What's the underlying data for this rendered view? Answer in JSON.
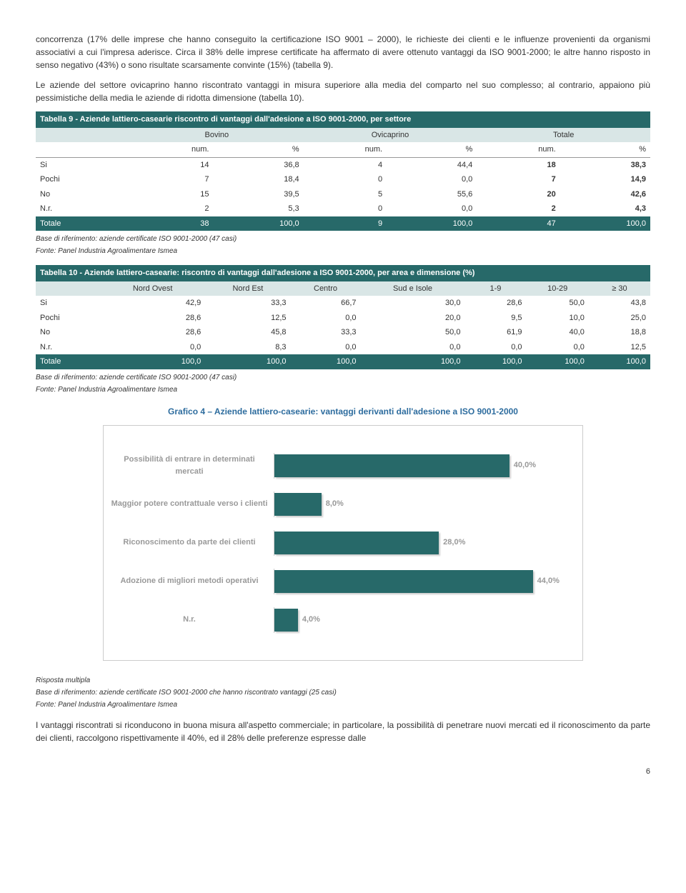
{
  "para1": "concorrenza (17% delle imprese che hanno conseguito la certificazione ISO 9001 – 2000), le richieste dei clienti e le influenze provenienti da organismi associativi a cui l'impresa aderisce. Circa il 38% delle imprese certificate ha affermato di avere ottenuto vantaggi da ISO 9001-2000; le altre hanno risposto in senso negativo (43%) o sono risultate scarsamente convinte (15%) (tabella 9).",
  "para2": "Le aziende del settore ovicaprino hanno riscontrato vantaggi in misura superiore alla media del comparto nel suo complesso; al contrario, appaiono più pessimistiche della media le aziende di ridotta dimensione (tabella 10).",
  "table9": {
    "title": "Tabella 9 - Aziende lattiero-casearie riscontro di vantaggi dall'adesione a ISO 9001-2000, per settore",
    "groups": [
      "Bovino",
      "Ovicaprino",
      "Totale"
    ],
    "subcols": [
      "num.",
      "%",
      "num.",
      "%",
      "num.",
      "%"
    ],
    "rows": [
      {
        "label": "Si",
        "v": [
          "14",
          "36,8",
          "4",
          "44,4",
          "18",
          "38,3"
        ]
      },
      {
        "label": "Pochi",
        "v": [
          "7",
          "18,4",
          "0",
          "0,0",
          "7",
          "14,9"
        ]
      },
      {
        "label": "No",
        "v": [
          "15",
          "39,5",
          "5",
          "55,6",
          "20",
          "42,6"
        ]
      },
      {
        "label": "N.r.",
        "v": [
          "2",
          "5,3",
          "0",
          "0,0",
          "2",
          "4,3"
        ]
      }
    ],
    "total": {
      "label": "Totale",
      "v": [
        "38",
        "100,0",
        "9",
        "100,0",
        "47",
        "100,0"
      ]
    },
    "note1": "Base di riferimento: aziende certificate ISO 9001-2000 (47 casi)",
    "note2": "Fonte: Panel Industria Agroalimentare Ismea"
  },
  "table10": {
    "title": "Tabella 10 - Aziende lattiero-casearie: riscontro di vantaggi dall'adesione a ISO 9001-2000, per area e dimensione (%)",
    "cols": [
      "Nord Ovest",
      "Nord Est",
      "Centro",
      "Sud e Isole",
      "1-9",
      "10-29",
      "≥ 30"
    ],
    "rows": [
      {
        "label": "Si",
        "v": [
          "42,9",
          "33,3",
          "66,7",
          "30,0",
          "28,6",
          "50,0",
          "43,8"
        ]
      },
      {
        "label": "Pochi",
        "v": [
          "28,6",
          "12,5",
          "0,0",
          "20,0",
          "9,5",
          "10,0",
          "25,0"
        ]
      },
      {
        "label": "No",
        "v": [
          "28,6",
          "45,8",
          "33,3",
          "50,0",
          "61,9",
          "40,0",
          "18,8"
        ]
      },
      {
        "label": "N.r.",
        "v": [
          "0,0",
          "8,3",
          "0,0",
          "0,0",
          "0,0",
          "0,0",
          "12,5"
        ]
      }
    ],
    "total": {
      "label": "Totale",
      "v": [
        "100,0",
        "100,0",
        "100,0",
        "100,0",
        "100,0",
        "100,0",
        "100,0"
      ]
    },
    "note1": "Base di riferimento: aziende certificate ISO 9001-2000 (47 casi)",
    "note2": "Fonte: Panel Industria Agroalimentare Ismea"
  },
  "chart": {
    "title": "Grafico 4 – Aziende lattiero-casearie: vantaggi derivanti dall'adesione a ISO 9001-2000",
    "max_pct": 50,
    "bar_color": "#276969",
    "items": [
      {
        "label": "Possibilità di entrare in determinati mercati",
        "pct": 40.0,
        "txt": "40,0%"
      },
      {
        "label": "Maggior potere contrattuale verso i clienti",
        "pct": 8.0,
        "txt": "8,0%"
      },
      {
        "label": "Riconoscimento da parte dei clienti",
        "pct": 28.0,
        "txt": "28,0%"
      },
      {
        "label": "Adozione di migliori metodi operativi",
        "pct": 44.0,
        "txt": "44,0%"
      },
      {
        "label": "N.r.",
        "pct": 4.0,
        "txt": "4,0%"
      }
    ],
    "note0": "Risposta multipla",
    "note1": "Base di riferimento: aziende certificate ISO 9001-2000 che hanno riscontrato vantaggi (25 casi)",
    "note2": "Fonte: Panel Industria Agroalimentare Ismea"
  },
  "para3": "I vantaggi riscontrati si riconducono in buona misura all'aspetto commerciale; in particolare, la possibilità di penetrare nuovi mercati ed il riconoscimento da parte dei clienti, raccolgono rispettivamente il 40%, ed il 28% delle preferenze espresse dalle",
  "page_num": "6"
}
